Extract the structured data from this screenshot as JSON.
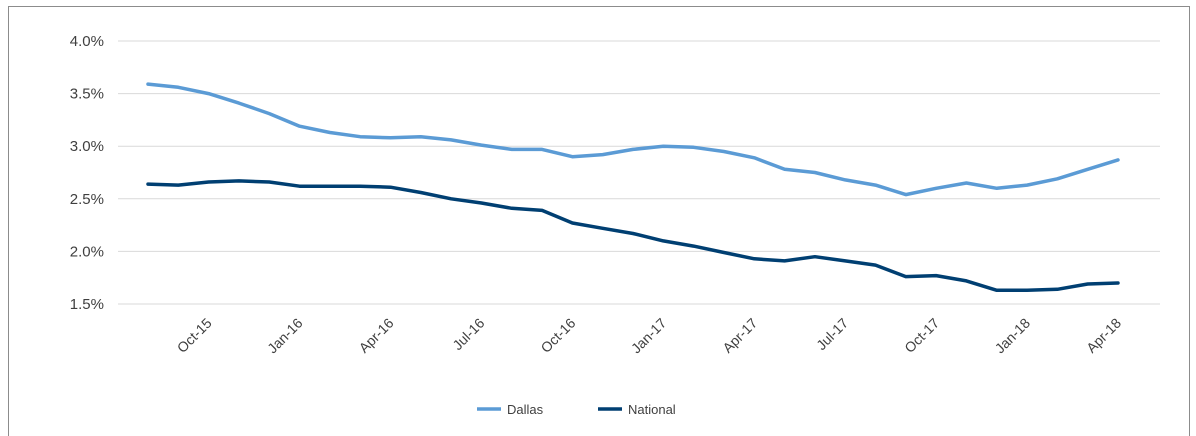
{
  "chart_data": {
    "type": "line",
    "title": "",
    "xlabel": "",
    "ylabel": "",
    "ylim": [
      1.5,
      4.0
    ],
    "yticks": [
      "1.5%",
      "2.0%",
      "2.5%",
      "3.0%",
      "3.5%",
      "4.0%"
    ],
    "ytick_values": [
      1.5,
      2.0,
      2.5,
      3.0,
      3.5,
      4.0
    ],
    "x": [
      "Aug-15",
      "Sep-15",
      "Oct-15",
      "Nov-15",
      "Dec-15",
      "Jan-16",
      "Feb-16",
      "Mar-16",
      "Apr-16",
      "May-16",
      "Jun-16",
      "Jul-16",
      "Aug-16",
      "Sep-16",
      "Oct-16",
      "Nov-16",
      "Dec-16",
      "Jan-17",
      "Feb-17",
      "Mar-17",
      "Apr-17",
      "May-17",
      "Jun-17",
      "Jul-17",
      "Aug-17",
      "Sep-17",
      "Oct-17",
      "Nov-17",
      "Dec-17",
      "Jan-18",
      "Feb-18",
      "Mar-18",
      "Apr-18"
    ],
    "xtick_labels": [
      "Oct-15",
      "Jan-16",
      "Apr-16",
      "Jul-16",
      "Oct-16",
      "Jan-17",
      "Apr-17",
      "Jul-17",
      "Oct-17",
      "Jan-18",
      "Apr-18"
    ],
    "grid": true,
    "legend_position": "bottom-center",
    "series": [
      {
        "name": "Dallas",
        "color": "#5b9bd5",
        "values": [
          3.59,
          3.56,
          3.5,
          3.41,
          3.31,
          3.19,
          3.13,
          3.09,
          3.08,
          3.09,
          3.06,
          3.01,
          2.97,
          2.97,
          2.9,
          2.92,
          2.97,
          3.0,
          2.99,
          2.95,
          2.89,
          2.78,
          2.75,
          2.68,
          2.63,
          2.54,
          2.6,
          2.65,
          2.6,
          2.63,
          2.69,
          2.78,
          2.87
        ]
      },
      {
        "name": "National",
        "color": "#003f72",
        "values": [
          2.64,
          2.63,
          2.66,
          2.67,
          2.66,
          2.62,
          2.62,
          2.62,
          2.61,
          2.56,
          2.5,
          2.46,
          2.41,
          2.39,
          2.27,
          2.22,
          2.17,
          2.1,
          2.05,
          1.99,
          1.93,
          1.91,
          1.95,
          1.91,
          1.87,
          1.76,
          1.77,
          1.72,
          1.63,
          1.63,
          1.64,
          1.69,
          1.7
        ]
      }
    ]
  }
}
